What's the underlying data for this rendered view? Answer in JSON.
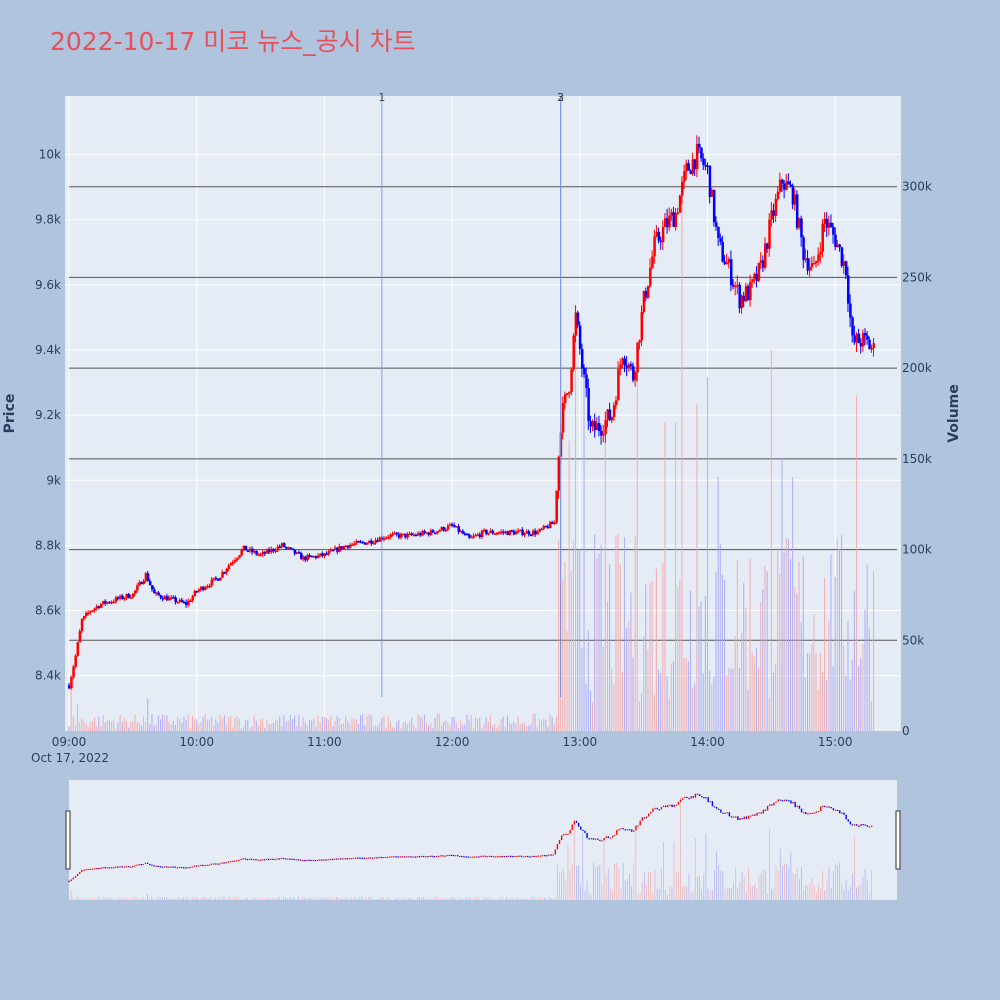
{
  "title": "2022-10-17 미코 뉴스_공시 차트",
  "colors": {
    "page_bg": "#b0c4de",
    "plot_bg": "#e5ecf6",
    "title": "#e8505b",
    "up": "#ff0000",
    "down": "#0000ff",
    "up_volume": "#f4a6a6",
    "down_volume": "#a6a6f4",
    "marker_line": "#6f8fe0",
    "hline": "#555555",
    "axis_text": "#2a3f5f"
  },
  "chart_data": {
    "type": "candlestick",
    "xlabel": "",
    "ylabel": "Price",
    "y2label": "Volume",
    "x_date_label": "Oct 17, 2022",
    "x_range": [
      "09:00",
      "15:30"
    ],
    "ylim": [
      8230,
      10180
    ],
    "y2lim": [
      0,
      350000
    ],
    "y_ticks": [
      {
        "value": 8400,
        "label": "8.4k"
      },
      {
        "value": 8600,
        "label": "8.6k"
      },
      {
        "value": 8800,
        "label": "8.8k"
      },
      {
        "value": 9000,
        "label": "9k"
      },
      {
        "value": 9200,
        "label": "9.2k"
      },
      {
        "value": 9400,
        "label": "9.4k"
      },
      {
        "value": 9600,
        "label": "9.6k"
      },
      {
        "value": 9800,
        "label": "9.8k"
      },
      {
        "value": 10000,
        "label": "10k"
      }
    ],
    "y2_ticks": [
      {
        "value": 0,
        "label": "0"
      },
      {
        "value": 50000,
        "label": "50k"
      },
      {
        "value": 100000,
        "label": "100k"
      },
      {
        "value": 150000,
        "label": "150k"
      },
      {
        "value": 200000,
        "label": "200k"
      },
      {
        "value": 250000,
        "label": "250k"
      },
      {
        "value": 300000,
        "label": "300k"
      }
    ],
    "x_ticks": [
      "09:00",
      "10:00",
      "11:00",
      "12:00",
      "13:00",
      "14:00",
      "15:00"
    ],
    "horizontal_lines_volume": [
      50000,
      100000,
      150000,
      200000,
      250000,
      300000
    ],
    "news_markers": [
      {
        "label": "1",
        "time": "11:27"
      },
      {
        "label": "2",
        "time": "12:51"
      },
      {
        "label": "3",
        "time": "12:51"
      }
    ],
    "price_path": [
      [
        "09:00",
        8370
      ],
      [
        "09:03",
        8460
      ],
      [
        "09:06",
        8570
      ],
      [
        "09:10",
        8600
      ],
      [
        "09:15",
        8620
      ],
      [
        "09:20",
        8630
      ],
      [
        "09:25",
        8640
      ],
      [
        "09:30",
        8650
      ],
      [
        "09:36",
        8710
      ],
      [
        "09:40",
        8650
      ],
      [
        "09:50",
        8630
      ],
      [
        "09:55",
        8620
      ],
      [
        "10:00",
        8660
      ],
      [
        "10:10",
        8700
      ],
      [
        "10:15",
        8740
      ],
      [
        "10:22",
        8790
      ],
      [
        "10:30",
        8770
      ],
      [
        "10:40",
        8800
      ],
      [
        "10:50",
        8760
      ],
      [
        "11:00",
        8770
      ],
      [
        "11:10",
        8800
      ],
      [
        "11:20",
        8810
      ],
      [
        "11:30",
        8830
      ],
      [
        "11:40",
        8830
      ],
      [
        "11:50",
        8840
      ],
      [
        "12:00",
        8860
      ],
      [
        "12:08",
        8820
      ],
      [
        "12:15",
        8840
      ],
      [
        "12:30",
        8840
      ],
      [
        "12:40",
        8840
      ],
      [
        "12:48",
        8870
      ],
      [
        "12:51",
        9180
      ],
      [
        "12:55",
        9300
      ],
      [
        "12:58",
        9500
      ],
      [
        "13:02",
        9300
      ],
      [
        "13:05",
        9150
      ],
      [
        "13:10",
        9170
      ],
      [
        "13:15",
        9200
      ],
      [
        "13:20",
        9400
      ],
      [
        "13:25",
        9320
      ],
      [
        "13:30",
        9550
      ],
      [
        "13:35",
        9720
      ],
      [
        "13:40",
        9780
      ],
      [
        "13:45",
        9820
      ],
      [
        "13:50",
        9950
      ],
      [
        "13:55",
        10000
      ],
      [
        "14:00",
        9950
      ],
      [
        "14:05",
        9720
      ],
      [
        "14:10",
        9650
      ],
      [
        "14:15",
        9560
      ],
      [
        "14:20",
        9580
      ],
      [
        "14:25",
        9650
      ],
      [
        "14:30",
        9800
      ],
      [
        "14:35",
        9920
      ],
      [
        "14:40",
        9880
      ],
      [
        "14:45",
        9700
      ],
      [
        "14:50",
        9640
      ],
      [
        "14:55",
        9800
      ],
      [
        "15:00",
        9740
      ],
      [
        "15:05",
        9650
      ],
      [
        "15:08",
        9420
      ],
      [
        "15:12",
        9430
      ],
      [
        "15:15",
        9420
      ],
      [
        "15:18",
        9400
      ]
    ],
    "volume_peaks": [
      [
        "09:01",
        30000
      ],
      [
        "09:04",
        15000
      ],
      [
        "09:35",
        8000
      ],
      [
        "09:37",
        18000
      ],
      [
        "12:51",
        80000
      ],
      [
        "12:55",
        160000
      ],
      [
        "12:58",
        230000
      ],
      [
        "13:02",
        195000
      ],
      [
        "13:12",
        170000
      ],
      [
        "13:27",
        195000
      ],
      [
        "13:40",
        170000
      ],
      [
        "13:45",
        170000
      ],
      [
        "13:48",
        300000
      ],
      [
        "13:55",
        180000
      ],
      [
        "14:00",
        195000
      ],
      [
        "14:05",
        140000
      ],
      [
        "14:30",
        210000
      ],
      [
        "14:35",
        150000
      ],
      [
        "14:40",
        140000
      ],
      [
        "15:00",
        85000
      ],
      [
        "15:10",
        185000
      ],
      [
        "15:20",
        55000
      ]
    ]
  }
}
